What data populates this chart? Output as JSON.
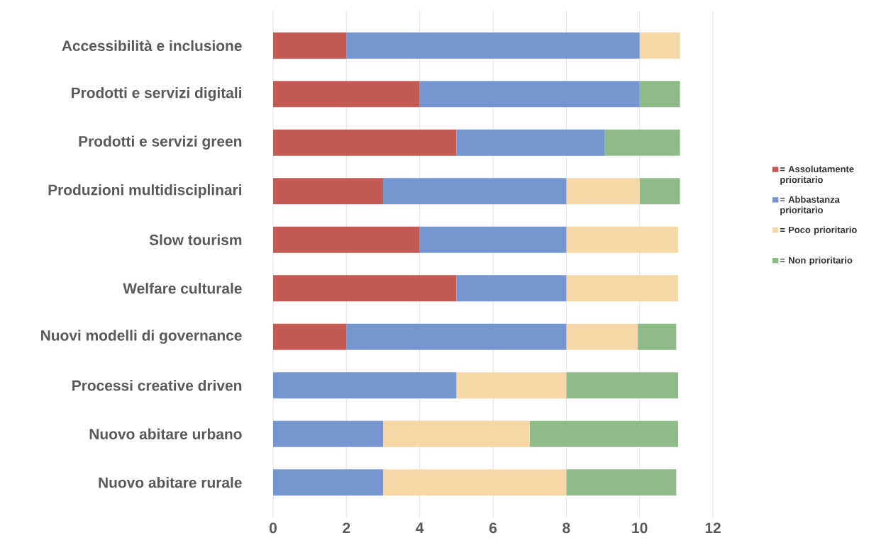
{
  "chart_data": {
    "type": "bar",
    "orientation": "horizontal",
    "stacked": true,
    "categories": [
      "Accessibilità e inclusione",
      "Prodotti e servizi digitali",
      "Prodotti e servizi green",
      "Produzioni multidisciplinari",
      "Slow tourism",
      "Welfare culturale",
      "Nuovi modelli di governance",
      "Processi creative driven",
      "Nuovo abitare urbano",
      "Nuovo abitare rurale"
    ],
    "series": [
      {
        "name": "= Assolutamente prioritario",
        "color": "#c55a55",
        "values": [
          2,
          4,
          5,
          3,
          4,
          5,
          2,
          null,
          null,
          null
        ]
      },
      {
        "name": "= Abbastanza prioritario",
        "color": "#7596d1",
        "values": [
          8,
          6,
          4.05,
          5,
          4,
          3,
          6,
          5,
          3,
          3
        ]
      },
      {
        "name": "= Poco prioritario",
        "color": "#f6d7a7",
        "values": [
          1.1,
          null,
          null,
          2,
          3.05,
          3.05,
          1.95,
          3,
          4,
          5
        ]
      },
      {
        "name": "= Non prioritario",
        "color": "#8fbb88",
        "values": [
          null,
          1.1,
          2.05,
          1.1,
          null,
          null,
          1.05,
          3.05,
          4.05,
          3
        ]
      }
    ],
    "xlim": [
      0,
      12
    ],
    "xticks": [
      0,
      2,
      4,
      6,
      8,
      10,
      12
    ],
    "grid": "x",
    "legend": "right"
  }
}
